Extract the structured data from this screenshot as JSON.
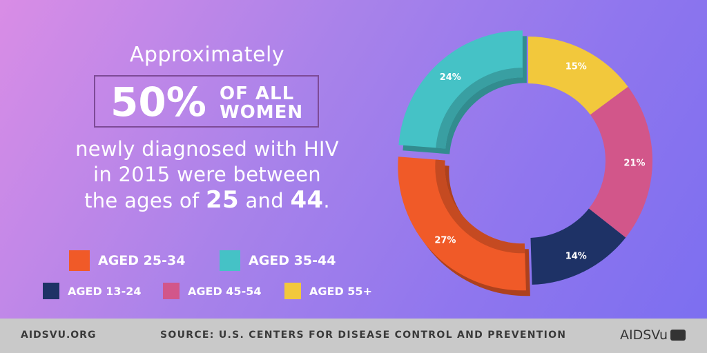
{
  "headline": {
    "approx": "Approximately",
    "stat": "50%",
    "stat_label_line1": "OF ALL",
    "stat_label_line2": "WOMEN",
    "line1": "newly diagnosed with HIV",
    "line2": "in 2015 were between",
    "line3_prefix": "the ages of",
    "age_low": "25",
    "line3_mid": "and",
    "age_high": "44",
    "line3_suffix": "."
  },
  "legend": [
    {
      "label": "AGED 25-34",
      "color": "#f05a28"
    },
    {
      "label": "AGED 35-44",
      "color": "#45c2c6"
    },
    {
      "label": "AGED 13-24",
      "color": "#1e3266"
    },
    {
      "label": "AGED 45-54",
      "color": "#d2568a"
    },
    {
      "label": "AGED 55+",
      "color": "#f2c83c"
    }
  ],
  "footer": {
    "site": "AIDSVU.ORG",
    "source": "SOURCE: U.S. CENTERS FOR DISEASE CONTROL AND PREVENTION",
    "logo": "AIDSVu"
  },
  "chart_data": {
    "type": "pie",
    "style": "donut",
    "title": "",
    "slices": [
      {
        "label": "AGED 55+",
        "value": 15,
        "display": "15%",
        "color": "#f2c83c"
      },
      {
        "label": "AGED 45-54",
        "value": 21,
        "display": "21%",
        "color": "#d2568a"
      },
      {
        "label": "AGED 13-24",
        "value": 14,
        "display": "14%",
        "color": "#1e3266"
      },
      {
        "label": "AGED 25-34",
        "value": 27,
        "display": "27%",
        "color": "#f05a28",
        "exploded": true
      },
      {
        "label": "AGED 35-44",
        "value": 24,
        "display": "24%",
        "color": "#45c2c6",
        "exploded": true
      }
    ]
  }
}
